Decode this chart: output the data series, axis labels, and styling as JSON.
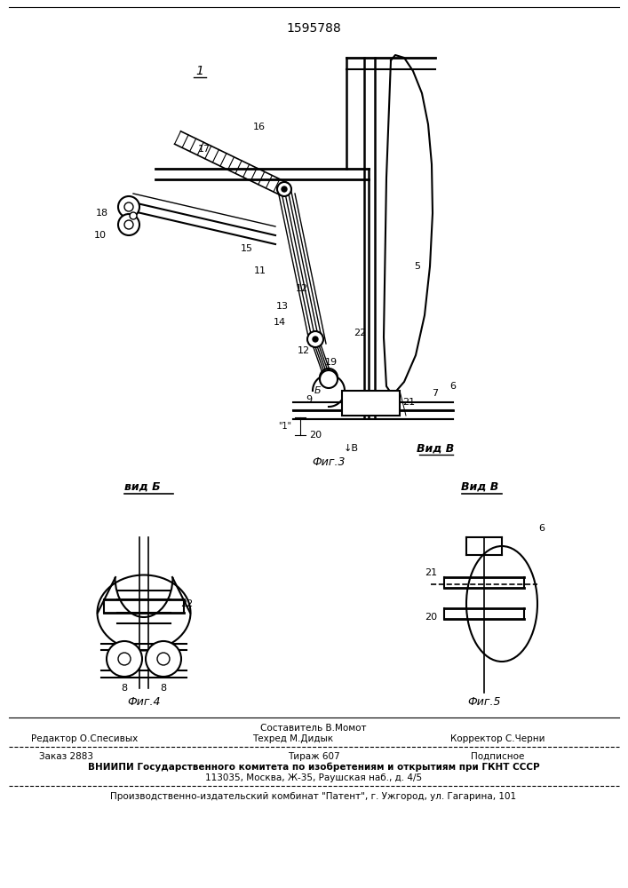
{
  "patent_number": "1595788",
  "bg_color": "#ffffff",
  "line_color": "#000000",
  "fig_width": 7.07,
  "fig_height": 10.0,
  "footer_составитель": "Составитель В.Момот",
  "footer_редактор": "Редактор О.Спесивых",
  "footer_техред": "Техред М.Дидык",
  "footer_корректор": "Корректор С.Черни",
  "footer_заказ": "Заказ 2883",
  "footer_тираж": "Тираж 607",
  "footer_подписное": "Подписное",
  "footer_вниипи": "ВНИИПИ Государственного комитета по изобретениям и открытиям при ГКНТ СССР",
  "footer_адрес": "113035, Москва, Ж-35, Раушская наб., д. 4/5",
  "footer_патент": "Производственно-издательский комбинат \"Патент\", г. Ужгород, ул. Гагарина, 101"
}
